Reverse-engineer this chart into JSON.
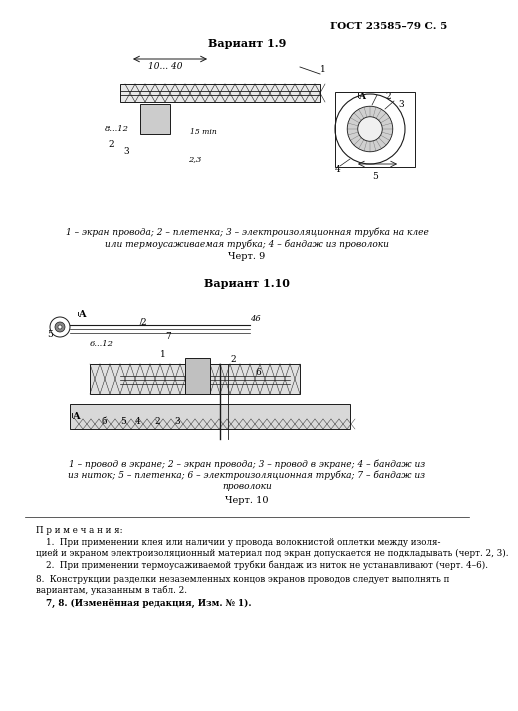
{
  "page_header": "ГОСТ 23585–79 С. 5",
  "variant1_title": "Вариант 1.9",
  "variant1_caption_line1": "1 – экран провода; 2 – плетенка; 3 – электроизоляционная трубка на клее",
  "variant1_caption_line2": "или термоусаживаемая трубка; 4 – бандаж из проволоки",
  "variant1_chart_label": "Черт. 9",
  "variant2_title": "Вариант 1.10",
  "variant2_caption_line1": "1 – провод в экране; 2 – экран провода; 3 – провод в экране; 4 – бандаж из",
  "variant2_caption_line2": "из ниток; 5 – плетенка; 6 – электроизоляционная трубка; 7 – бандаж из",
  "variant2_caption_line3": "проволоки",
  "variant2_chart_label": "Черт. 10",
  "note_title": "П р и м е ч а н и я:",
  "note1": "1.  При применении клея или наличии у провода волокнистой оплетки между изоляцией и экраном электроизоляционный материал под экран допускается не подкладывать (черт. 2, 3).",
  "note2": "2.  При применении термоусаживаемой трубки бандаж из ниток не устанавливают (черт. 4–6).",
  "note3": "8.  Конструкции разделки незаземленных концов экранов проводов следует выполнять п вариантам, указанным в табл. 2.",
  "note4": "7, 8. (Изменённая редакция, Изм. № 1).",
  "bg_color": "#ffffff",
  "text_color": "#000000",
  "diagram_color": "#1a1a1a"
}
